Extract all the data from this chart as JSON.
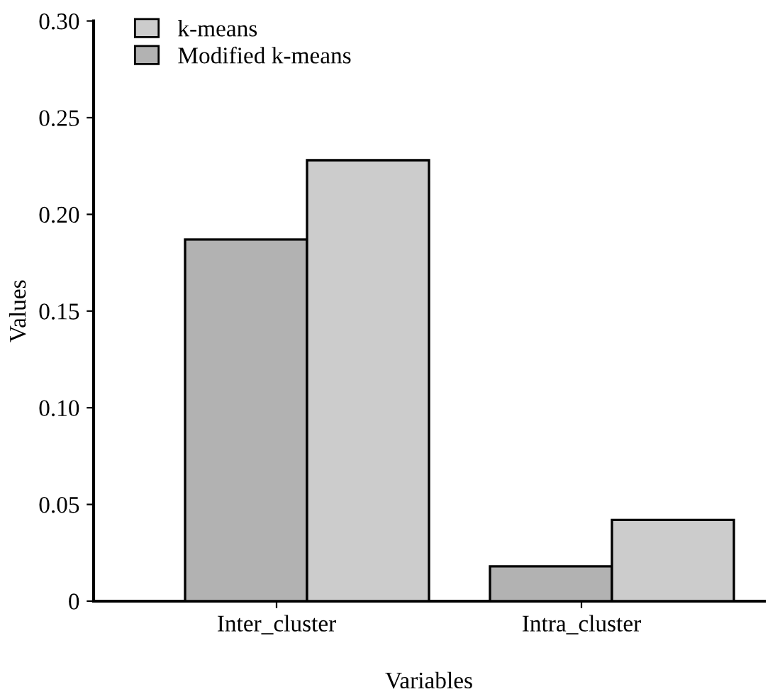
{
  "chart_data": {
    "type": "bar",
    "xlabel": "Variables",
    "ylabel": "Values",
    "categories": [
      "Inter_cluster",
      "Intra_cluster"
    ],
    "series": [
      {
        "name": "k-means",
        "color": "#cccccc",
        "values": [
          0.228,
          0.042
        ]
      },
      {
        "name": "Modified k-means",
        "color": "#b2b2b2",
        "values": [
          0.187,
          0.018
        ]
      }
    ],
    "ylim": [
      0,
      0.3
    ],
    "yticks": [
      {
        "value": 0,
        "label": "0"
      },
      {
        "value": 0.05,
        "label": "0.05"
      },
      {
        "value": 0.1,
        "label": "0.10"
      },
      {
        "value": 0.15,
        "label": "0.15"
      },
      {
        "value": 0.2,
        "label": "0.20"
      },
      {
        "value": 0.25,
        "label": "0.25"
      },
      {
        "value": 0.3,
        "label": "0.30"
      }
    ],
    "grid": false,
    "legend": "top left"
  }
}
